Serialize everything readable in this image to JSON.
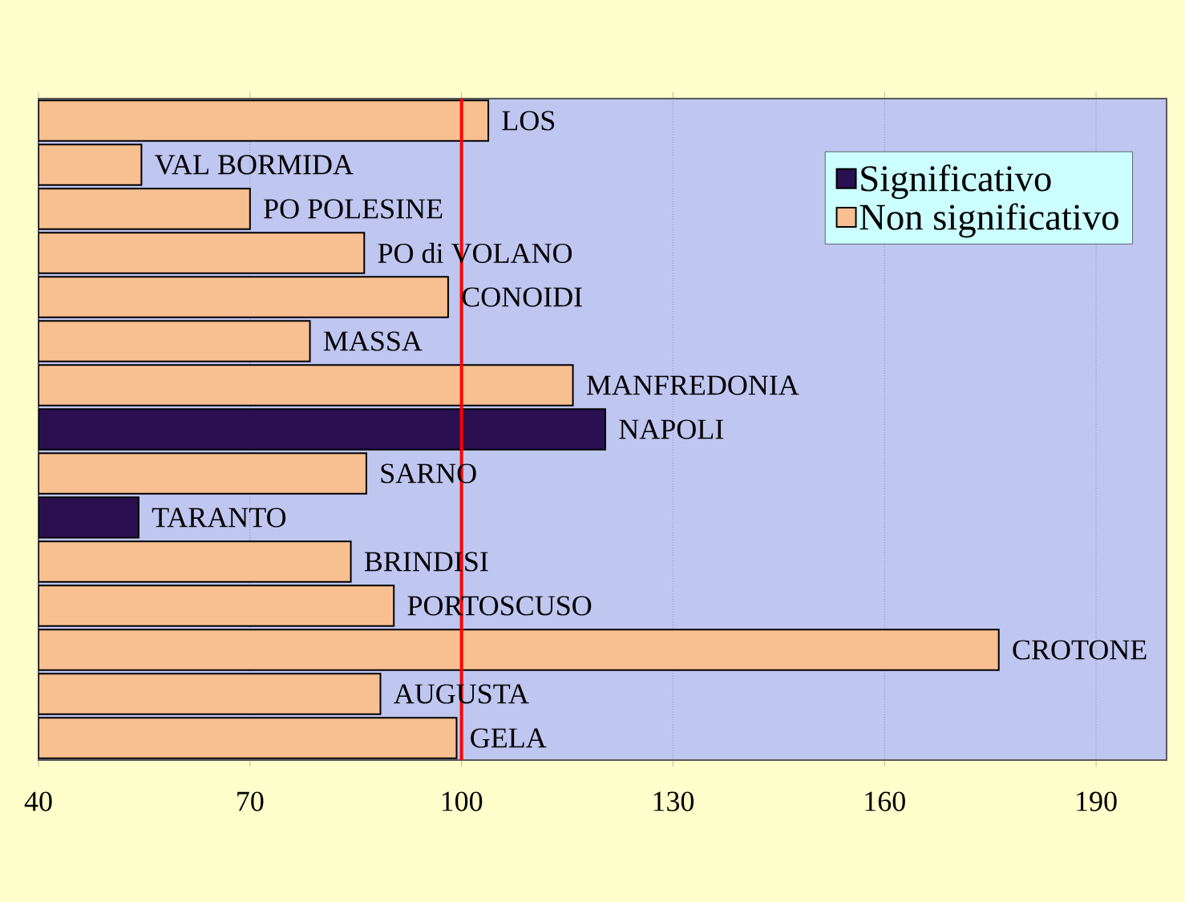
{
  "chart_data": {
    "type": "bar",
    "orientation": "horizontal",
    "categories": [
      "LOS",
      "VAL BORMIDA",
      "PO POLESINE",
      "PO di VOLANO",
      "CONOIDI",
      "MASSA",
      "MANFREDONIA",
      "NAPOLI",
      "SARNO",
      "TARANTO",
      "BRINDISI",
      "PORTOSCUSO",
      "CROTONE",
      "AUGUSTA",
      "GELA"
    ],
    "series": [
      {
        "name": "Significativo",
        "color": "#2a1050",
        "values": [
          null,
          null,
          null,
          null,
          null,
          null,
          null,
          120.4,
          null,
          54.2,
          null,
          null,
          null,
          null,
          null
        ]
      },
      {
        "name": "Non significativo",
        "color": "#f8c090",
        "values": [
          103.8,
          54.6,
          70,
          86.2,
          98.1,
          78.5,
          115.8,
          null,
          86.5,
          null,
          84.3,
          90.4,
          176.2,
          88.5,
          99.3
        ]
      }
    ],
    "xlim": [
      40,
      200
    ],
    "xticks": [
      40,
      70,
      100,
      130,
      160,
      190
    ],
    "grid": "x",
    "legend": "top right",
    "ref_lines": [
      {
        "axis": "x",
        "value": 100,
        "color": "#ff0000"
      }
    ]
  }
}
